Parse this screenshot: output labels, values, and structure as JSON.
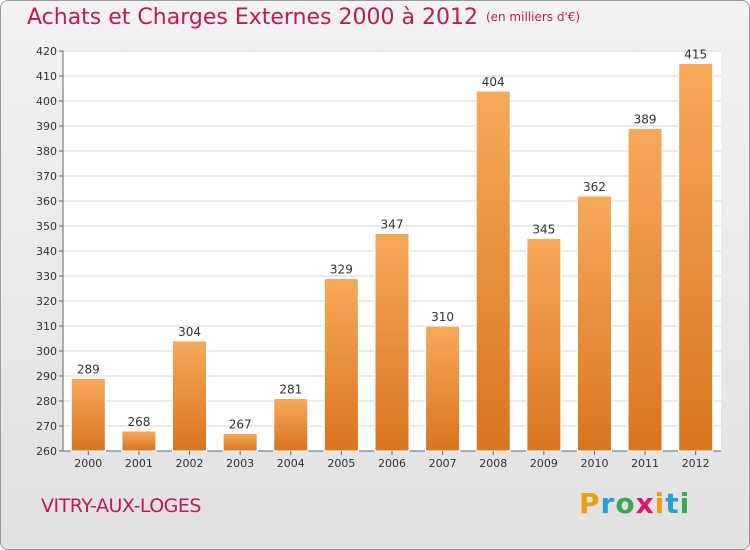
{
  "chart_data": {
    "type": "bar",
    "title": "Achats et Charges Externes 2000 à 2012",
    "subtitle": "(en milliers d'€)",
    "categories": [
      "2000",
      "2001",
      "2002",
      "2003",
      "2004",
      "2005",
      "2006",
      "2007",
      "2008",
      "2009",
      "2010",
      "2011",
      "2012"
    ],
    "values": [
      289,
      268,
      304,
      267,
      281,
      329,
      347,
      310,
      404,
      345,
      362,
      389,
      415
    ],
    "ylim": [
      260,
      420
    ],
    "yticks": [
      260,
      270,
      280,
      290,
      300,
      310,
      320,
      330,
      340,
      350,
      360,
      370,
      380,
      390,
      400,
      410,
      420
    ],
    "grid": true,
    "bar_color_top": "#f7a95a",
    "bar_color_bottom": "#d9741f"
  },
  "footer": {
    "commune": "VITRY-AUX-LOGES",
    "logo_letters": [
      "P",
      "r",
      "o",
      "x",
      "i",
      "t",
      "i"
    ],
    "logo_colors": [
      "#f39c12",
      "#2a9fd6",
      "#3aa84f",
      "#e2136e",
      "#f39c12",
      "#2a9fd6",
      "#3aa84f"
    ]
  },
  "colors": {
    "accent": "#c2185b"
  }
}
